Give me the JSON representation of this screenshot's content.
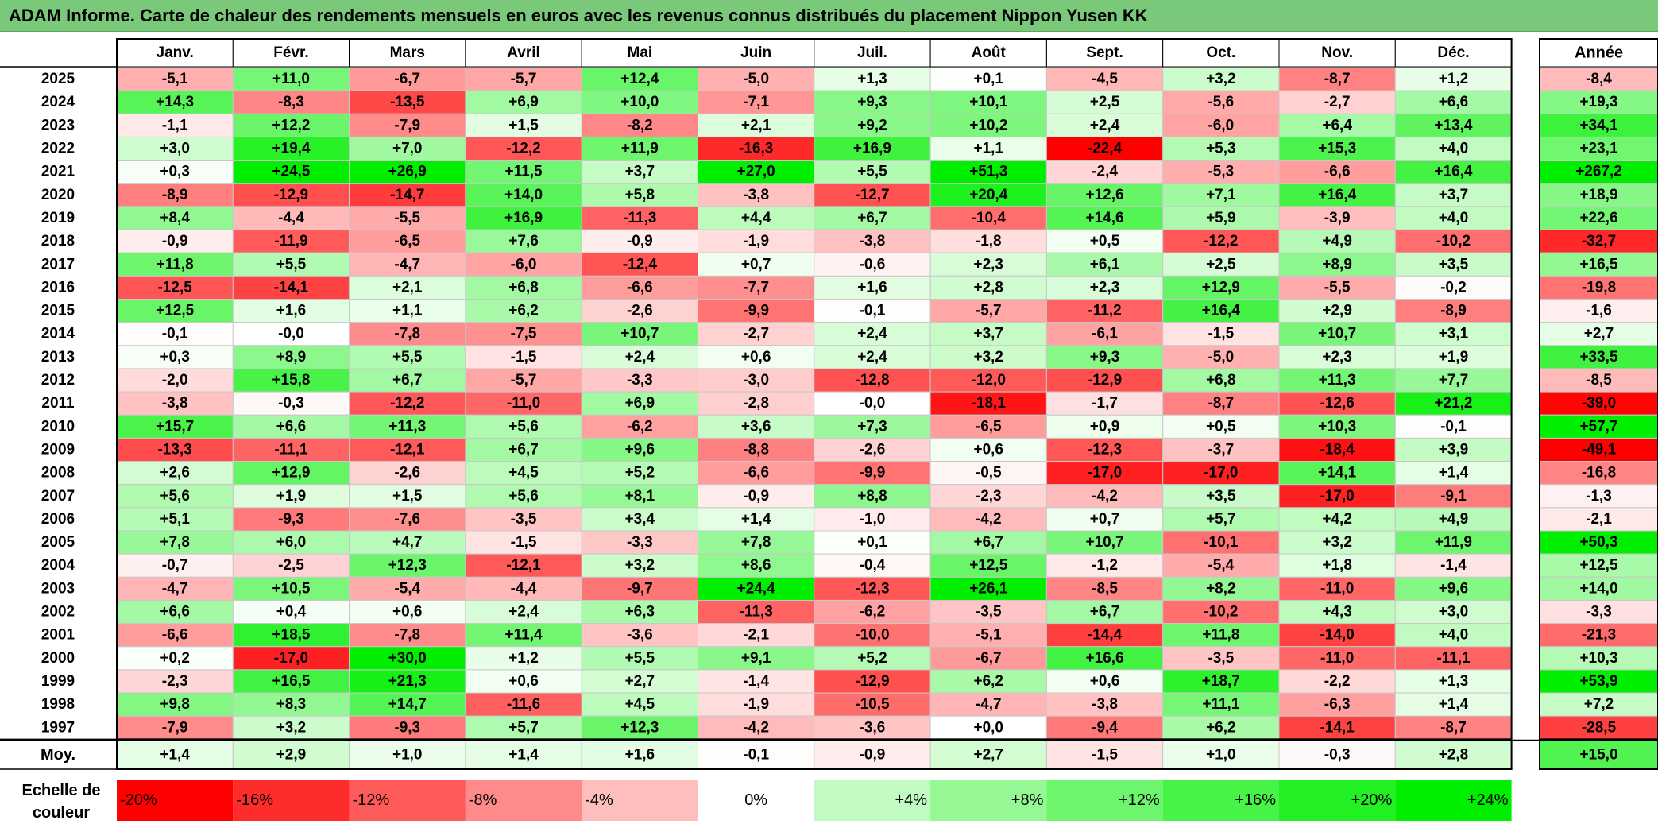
{
  "title": "ADAM Informe. Carte de chaleur des rendements mensuels en euros avec les revenus connus distribués du placement Nippon Yusen KK",
  "chart_data": {
    "type": "heatmap",
    "months": [
      "Janv.",
      "Févr.",
      "Mars",
      "Avril",
      "Mai",
      "Juin",
      "Juil.",
      "Août",
      "Sept.",
      "Oct.",
      "Nov.",
      "Déc."
    ],
    "year_header": "Année",
    "average_label": "Moy.",
    "rows": [
      {
        "year": "2025",
        "values": [
          "-5,1",
          "+11,0",
          "-6,7",
          "-5,7",
          "+12,4",
          "-5,0",
          "+1,3",
          "+0,1",
          "-4,5",
          "+3,2",
          "-8,7",
          "+1,2"
        ],
        "annual": "-8,4"
      },
      {
        "year": "2024",
        "values": [
          "+14,3",
          "-8,3",
          "-13,5",
          "+6,9",
          "+10,0",
          "-7,1",
          "+9,3",
          "+10,1",
          "+2,5",
          "-5,6",
          "-2,7",
          "+6,6"
        ],
        "annual": "+19,3"
      },
      {
        "year": "2023",
        "values": [
          "-1,1",
          "+12,2",
          "-7,9",
          "+1,5",
          "-8,2",
          "+2,1",
          "+9,2",
          "+10,2",
          "+2,4",
          "-6,0",
          "+6,4",
          "+13,4"
        ],
        "annual": "+34,1"
      },
      {
        "year": "2022",
        "values": [
          "+3,0",
          "+19,4",
          "+7,0",
          "-12,2",
          "+11,9",
          "-16,3",
          "+16,9",
          "+1,1",
          "-22,4",
          "+5,3",
          "+15,3",
          "+4,0"
        ],
        "annual": "+23,1"
      },
      {
        "year": "2021",
        "values": [
          "+0,3",
          "+24,5",
          "+26,9",
          "+11,5",
          "+3,7",
          "+27,0",
          "+5,5",
          "+51,3",
          "-2,4",
          "-5,3",
          "-6,6",
          "+16,4"
        ],
        "annual": "+267,2"
      },
      {
        "year": "2020",
        "values": [
          "-8,9",
          "-12,9",
          "-14,7",
          "+14,0",
          "+5,8",
          "-3,8",
          "-12,7",
          "+20,4",
          "+12,6",
          "+7,1",
          "+16,4",
          "+3,7"
        ],
        "annual": "+18,9"
      },
      {
        "year": "2019",
        "values": [
          "+8,4",
          "-4,4",
          "-5,5",
          "+16,9",
          "-11,3",
          "+4,4",
          "+6,7",
          "-10,4",
          "+14,6",
          "+5,9",
          "-3,9",
          "+4,0"
        ],
        "annual": "+22,6"
      },
      {
        "year": "2018",
        "values": [
          "-0,9",
          "-11,9",
          "-6,5",
          "+7,6",
          "-0,9",
          "-1,9",
          "-3,8",
          "-1,8",
          "+0,5",
          "-12,2",
          "+4,9",
          "-10,2"
        ],
        "annual": "-32,7"
      },
      {
        "year": "2017",
        "values": [
          "+11,8",
          "+5,5",
          "-4,7",
          "-6,0",
          "-12,4",
          "+0,7",
          "-0,6",
          "+2,3",
          "+6,1",
          "+2,5",
          "+8,9",
          "+3,5"
        ],
        "annual": "+16,5"
      },
      {
        "year": "2016",
        "values": [
          "-12,5",
          "-14,1",
          "+2,1",
          "+6,8",
          "-6,6",
          "-7,7",
          "+1,6",
          "+2,8",
          "+2,3",
          "+12,9",
          "-5,5",
          "-0,2"
        ],
        "annual": "-19,8"
      },
      {
        "year": "2015",
        "values": [
          "+12,5",
          "+1,6",
          "+1,1",
          "+6,2",
          "-2,6",
          "-9,9",
          "-0,1",
          "-5,7",
          "-11,2",
          "+16,4",
          "+2,9",
          "-8,9"
        ],
        "annual": "-1,6"
      },
      {
        "year": "2014",
        "values": [
          "-0,1",
          "-0,0",
          "-7,8",
          "-7,5",
          "+10,7",
          "-2,7",
          "+2,4",
          "+3,7",
          "-6,1",
          "-1,5",
          "+10,7",
          "+3,1"
        ],
        "annual": "+2,7"
      },
      {
        "year": "2013",
        "values": [
          "+0,3",
          "+8,9",
          "+5,5",
          "-1,5",
          "+2,4",
          "+0,6",
          "+2,4",
          "+3,2",
          "+9,3",
          "-5,0",
          "+2,3",
          "+1,9"
        ],
        "annual": "+33,5"
      },
      {
        "year": "2012",
        "values": [
          "-2,0",
          "+15,8",
          "+6,7",
          "-5,7",
          "-3,3",
          "-3,0",
          "-12,8",
          "-12,0",
          "-12,9",
          "+6,8",
          "+11,3",
          "+7,7"
        ],
        "annual": "-8,5"
      },
      {
        "year": "2011",
        "values": [
          "-3,8",
          "-0,3",
          "-12,2",
          "-11,0",
          "+6,9",
          "-2,8",
          "-0,0",
          "-18,1",
          "-1,7",
          "-8,7",
          "-12,6",
          "+21,2"
        ],
        "annual": "-39,0"
      },
      {
        "year": "2010",
        "values": [
          "+15,7",
          "+6,6",
          "+11,3",
          "+5,6",
          "-6,2",
          "+3,6",
          "+7,3",
          "-6,5",
          "+0,9",
          "+0,5",
          "+10,3",
          "-0,1"
        ],
        "annual": "+57,7"
      },
      {
        "year": "2009",
        "values": [
          "-13,3",
          "-11,1",
          "-12,1",
          "+6,7",
          "+9,6",
          "-8,8",
          "-2,6",
          "+0,6",
          "-12,3",
          "-3,7",
          "-18,4",
          "+3,9"
        ],
        "annual": "-49,1"
      },
      {
        "year": "2008",
        "values": [
          "+2,6",
          "+12,9",
          "-2,6",
          "+4,5",
          "+5,2",
          "-6,6",
          "-9,9",
          "-0,5",
          "-17,0",
          "-17,0",
          "+14,1",
          "+1,4"
        ],
        "annual": "-16,8"
      },
      {
        "year": "2007",
        "values": [
          "+5,6",
          "+1,9",
          "+1,5",
          "+5,6",
          "+8,1",
          "-0,9",
          "+8,8",
          "-2,3",
          "-4,2",
          "+3,5",
          "-17,0",
          "-9,1"
        ],
        "annual": "-1,3"
      },
      {
        "year": "2006",
        "values": [
          "+5,1",
          "-9,3",
          "-7,6",
          "-3,5",
          "+3,4",
          "+1,4",
          "-1,0",
          "-4,2",
          "+0,7",
          "+5,7",
          "+4,2",
          "+4,9"
        ],
        "annual": "-2,1"
      },
      {
        "year": "2005",
        "values": [
          "+7,8",
          "+6,0",
          "+4,7",
          "-1,5",
          "-3,3",
          "+7,8",
          "+0,1",
          "+6,7",
          "+10,7",
          "-10,1",
          "+3,2",
          "+11,9"
        ],
        "annual": "+50,3"
      },
      {
        "year": "2004",
        "values": [
          "-0,7",
          "-2,5",
          "+12,3",
          "-12,1",
          "+3,2",
          "+8,6",
          "-0,4",
          "+12,5",
          "-1,2",
          "-5,4",
          "+1,8",
          "-1,4"
        ],
        "annual": "+12,5"
      },
      {
        "year": "2003",
        "values": [
          "-4,7",
          "+10,5",
          "-5,4",
          "-4,4",
          "-9,7",
          "+24,4",
          "-12,3",
          "+26,1",
          "-8,5",
          "+8,2",
          "-11,0",
          "+9,6"
        ],
        "annual": "+14,0"
      },
      {
        "year": "2002",
        "values": [
          "+6,6",
          "+0,4",
          "+0,6",
          "+2,4",
          "+6,3",
          "-11,3",
          "-6,2",
          "-3,5",
          "+6,7",
          "-10,2",
          "+4,3",
          "+3,0"
        ],
        "annual": "-3,3"
      },
      {
        "year": "2001",
        "values": [
          "-6,6",
          "+18,5",
          "-7,8",
          "+11,4",
          "-3,6",
          "-2,1",
          "-10,0",
          "-5,1",
          "-14,4",
          "+11,8",
          "-14,0",
          "+4,0"
        ],
        "annual": "-21,3"
      },
      {
        "year": "2000",
        "values": [
          "+0,2",
          "-17,0",
          "+30,0",
          "+1,2",
          "+5,5",
          "+9,1",
          "+5,2",
          "-6,7",
          "+16,6",
          "-3,5",
          "-11,0",
          "-11,1"
        ],
        "annual": "+10,3"
      },
      {
        "year": "1999",
        "values": [
          "-2,3",
          "+16,5",
          "+21,3",
          "+0,6",
          "+2,7",
          "-1,4",
          "-12,9",
          "+6,2",
          "+0,6",
          "+18,7",
          "-2,2",
          "+1,3"
        ],
        "annual": "+53,9"
      },
      {
        "year": "1998",
        "values": [
          "+9,8",
          "+8,3",
          "+14,7",
          "-11,6",
          "+4,5",
          "-1,9",
          "-10,5",
          "-4,7",
          "-3,8",
          "+11,1",
          "-6,3",
          "+1,4"
        ],
        "annual": "+7,2"
      },
      {
        "year": "1997",
        "values": [
          "-7,9",
          "+3,2",
          "-9,3",
          "+5,7",
          "+12,3",
          "-4,2",
          "-3,6",
          "+0,0",
          "-9,4",
          "+6,2",
          "-14,1",
          "-8,7"
        ],
        "annual": "-28,5"
      }
    ],
    "average": {
      "values": [
        "+1,4",
        "+2,9",
        "+1,0",
        "+1,4",
        "+1,6",
        "-0,1",
        "-0,9",
        "+2,7",
        "-1,5",
        "+1,0",
        "-0,3",
        "+2,8"
      ],
      "annual": "+15,0"
    },
    "scale": {
      "label_line1": "Echelle de",
      "label_line2": "couleur",
      "stops": [
        "-20%",
        "-16%",
        "-12%",
        "-8%",
        "-4%",
        "0%",
        "+4%",
        "+8%",
        "+12%",
        "+16%",
        "+20%",
        "+24%"
      ],
      "stop_values": [
        -20,
        -16,
        -12,
        -8,
        -4,
        0,
        4,
        8,
        12,
        16,
        20,
        24
      ]
    },
    "colors": {
      "negative_max": "#ff0000",
      "neutral": "#ffffff",
      "positive_max": "#00ee00",
      "title_bar": "#7ac87a"
    }
  }
}
